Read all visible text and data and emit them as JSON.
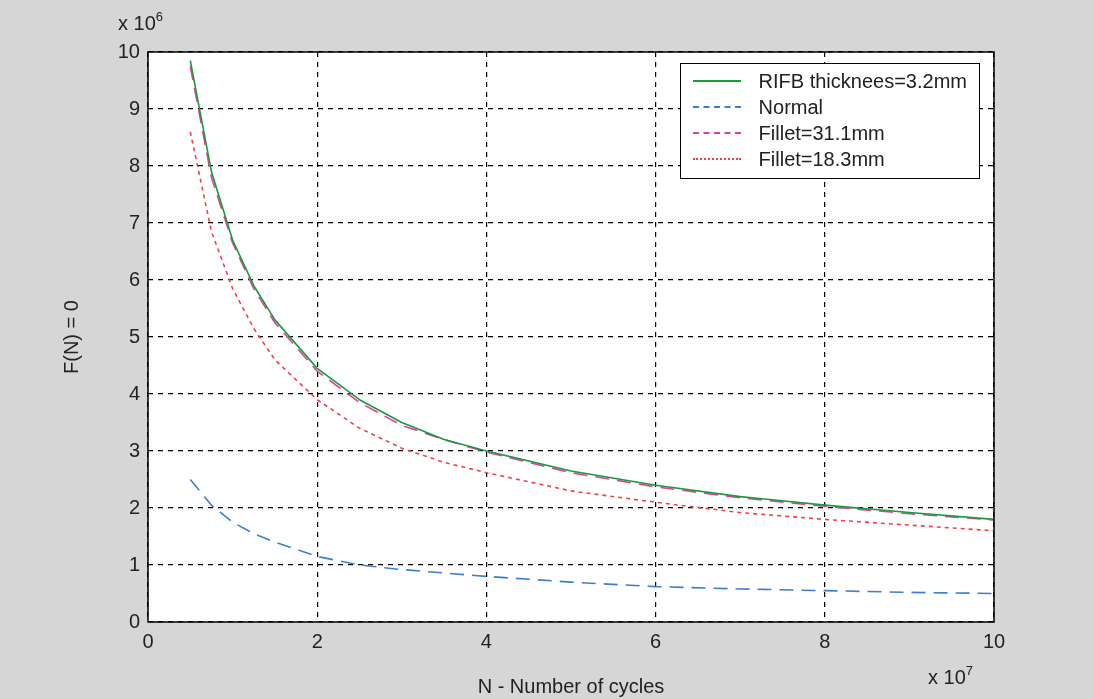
{
  "chart_data": {
    "type": "line",
    "xlabel": "N - Number of cycles",
    "ylabel": "F(N) = 0",
    "annotations": [
      "x 10$^{6}$",
      "x 10$^{7}$"
    ],
    "x": [
      0.5,
      0.75,
      1,
      1.25,
      1.5,
      2,
      2.5,
      3,
      3.5,
      4,
      5,
      6,
      7,
      8,
      9,
      10
    ],
    "series": [
      {
        "name": "RIFB thicknees=3.2mm",
        "color": "#1a9a3a",
        "line_style": "solid",
        "values": [
          9.85,
          7.9,
          6.7,
          5.9,
          5.3,
          4.45,
          3.9,
          3.5,
          3.2,
          3.0,
          2.65,
          2.4,
          2.2,
          2.05,
          1.92,
          1.8
        ]
      },
      {
        "name": "Normal",
        "color": "#3a7fd0",
        "line_style": "dashed",
        "values": [
          2.5,
          2.05,
          1.75,
          1.55,
          1.4,
          1.15,
          1.0,
          0.92,
          0.86,
          0.8,
          0.7,
          0.62,
          0.58,
          0.55,
          0.52,
          0.5
        ]
      },
      {
        "name": "Fillet=31.1mm",
        "color": "#e040a0",
        "line_style": "dashed",
        "values": [
          9.75,
          7.8,
          6.65,
          5.85,
          5.25,
          4.4,
          3.85,
          3.45,
          3.2,
          2.98,
          2.62,
          2.37,
          2.18,
          2.03,
          1.9,
          1.79
        ]
      },
      {
        "name": "Fillet=18.3mm",
        "color": "#f04050",
        "line_style": "dotted",
        "values": [
          8.6,
          6.85,
          5.85,
          5.15,
          4.6,
          3.9,
          3.4,
          3.05,
          2.8,
          2.62,
          2.3,
          2.1,
          1.92,
          1.8,
          1.7,
          1.6
        ]
      }
    ],
    "xlim": [
      0,
      10
    ],
    "xticks": [
      0,
      2,
      4,
      6,
      8,
      10
    ],
    "ylim": [
      0,
      10
    ],
    "yticks": [
      0,
      1,
      2,
      3,
      4,
      5,
      6,
      7,
      8,
      9,
      10
    ],
    "grid": true,
    "legend": "top right",
    "marker": "none"
  }
}
